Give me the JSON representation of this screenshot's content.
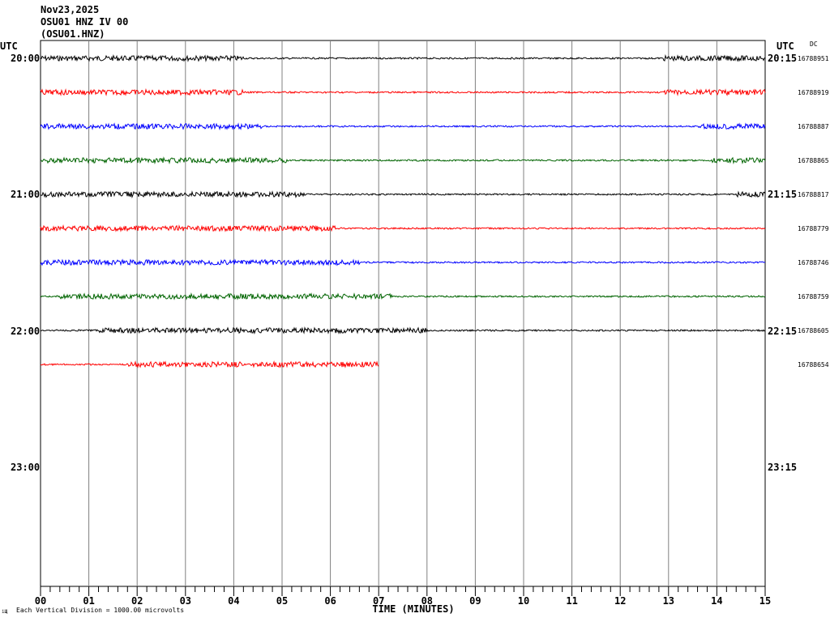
{
  "header": {
    "date": "Nov23,2025",
    "station": "OSU01 HNZ IV 00",
    "channel": "(OSU01.HNZ)"
  },
  "left_label": "UTC",
  "right_label": "UTC",
  "dc_label": "DC",
  "footnote": "Each Vertical Division = 1000.00 microvolts",
  "footnote_mark": "іЩ",
  "chart_data": {
    "type": "line",
    "xlabel": "TIME (MINUTES)",
    "xlim": [
      0,
      15
    ],
    "x_ticks": [
      "00",
      "01",
      "02",
      "03",
      "04",
      "05",
      "06",
      "07",
      "08",
      "09",
      "10",
      "11",
      "12",
      "13",
      "14",
      "15"
    ],
    "left_hour_labels": [
      "20:00",
      "21:00",
      "22:00",
      "23:00"
    ],
    "right_hour_labels": [
      "20:15",
      "21:15",
      "22:15",
      "23:15"
    ],
    "trace_colors": [
      "#000000",
      "#ff0000",
      "#0000ff",
      "#006400"
    ],
    "traces": [
      {
        "start": 0,
        "end": 15,
        "dc_offset": "16788951",
        "quiet": [
          [
            4.2,
            12.9
          ]
        ]
      },
      {
        "start": 0,
        "end": 15,
        "dc_offset": "16788919",
        "quiet": [
          [
            4.2,
            12.9
          ]
        ]
      },
      {
        "start": 0,
        "end": 15,
        "dc_offset": "16788887",
        "quiet": [
          [
            4.6,
            13.6
          ]
        ]
      },
      {
        "start": 0,
        "end": 15,
        "dc_offset": "16788865",
        "quiet": [
          [
            5.1,
            13.9
          ]
        ]
      },
      {
        "start": 0,
        "end": 15,
        "dc_offset": "16788817",
        "quiet": [
          [
            5.5,
            14.4
          ]
        ]
      },
      {
        "start": 0,
        "end": 15,
        "dc_offset": "16788779",
        "quiet": [
          [
            6.1,
            15.0
          ]
        ]
      },
      {
        "start": 0,
        "end": 15,
        "dc_offset": "16788746",
        "quiet": [
          [
            6.6,
            15.0
          ]
        ]
      },
      {
        "start": 0,
        "end": 15,
        "dc_offset": "16788759",
        "quiet": [
          [
            0,
            0.4
          ],
          [
            7.3,
            15.0
          ]
        ]
      },
      {
        "start": 0,
        "end": 15,
        "dc_offset": "16788605",
        "quiet": [
          [
            0,
            1.2
          ],
          [
            8.0,
            15.0
          ]
        ]
      },
      {
        "start": 0,
        "end": 7.0,
        "dc_offset": "16788654",
        "quiet": [
          [
            0,
            1.8
          ]
        ]
      }
    ]
  }
}
